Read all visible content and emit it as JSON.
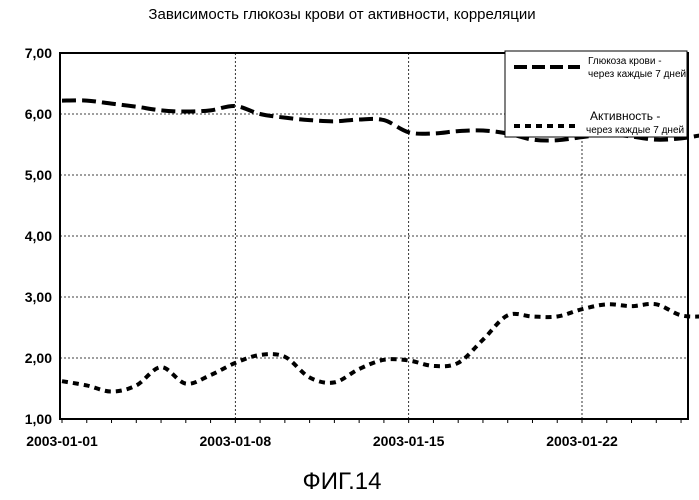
{
  "chart_data": {
    "type": "line",
    "title": "Зависимость глюкозы крови от активности, корреляции",
    "caption": "ФИГ.14",
    "xlabel": "",
    "ylabel": "",
    "ylim": [
      1.0,
      7.0
    ],
    "y_ticks": [
      "7,00",
      "6,00",
      "5,00",
      "4,00",
      "3,00",
      "2,00",
      "1,00"
    ],
    "x_ticks": [
      "2003-01-01",
      "2003-01-08",
      "2003-01-15",
      "2003-01-22"
    ],
    "x_range": [
      "2003-01-01",
      "2003-01-28"
    ],
    "grid": true,
    "legend_position": "top-right",
    "series": [
      {
        "name_line1": "Глюкоза крови -",
        "name_line2": "через каждые  7 дней",
        "style": "long-dash",
        "color": "#000000",
        "points": [
          [
            "2003-01-01",
            6.22
          ],
          [
            "2003-01-02",
            6.22
          ],
          [
            "2003-01-03",
            6.17
          ],
          [
            "2003-01-04",
            6.12
          ],
          [
            "2003-01-05",
            6.06
          ],
          [
            "2003-01-06",
            6.04
          ],
          [
            "2003-01-07",
            6.06
          ],
          [
            "2003-01-08",
            6.13
          ],
          [
            "2003-01-09",
            6.0
          ],
          [
            "2003-01-10",
            5.94
          ],
          [
            "2003-01-11",
            5.9
          ],
          [
            "2003-01-12",
            5.88
          ],
          [
            "2003-01-13",
            5.91
          ],
          [
            "2003-01-14",
            5.9
          ],
          [
            "2003-01-15",
            5.7
          ],
          [
            "2003-01-16",
            5.68
          ],
          [
            "2003-01-17",
            5.72
          ],
          [
            "2003-01-18",
            5.73
          ],
          [
            "2003-01-19",
            5.68
          ],
          [
            "2003-01-20",
            5.58
          ],
          [
            "2003-01-21",
            5.57
          ],
          [
            "2003-01-22",
            5.62
          ],
          [
            "2003-01-23",
            5.67
          ],
          [
            "2003-01-24",
            5.63
          ],
          [
            "2003-01-25",
            5.58
          ],
          [
            "2003-01-26",
            5.6
          ],
          [
            "2003-01-27",
            5.66
          ],
          [
            "2003-01-28",
            5.68
          ]
        ]
      },
      {
        "name_line1": "Активность -",
        "name_line2": "через каждые  7 дней",
        "style": "short-dash",
        "color": "#000000",
        "points": [
          [
            "2003-01-01",
            1.62
          ],
          [
            "2003-01-02",
            1.55
          ],
          [
            "2003-01-03",
            1.45
          ],
          [
            "2003-01-04",
            1.55
          ],
          [
            "2003-01-05",
            1.85
          ],
          [
            "2003-01-06",
            1.58
          ],
          [
            "2003-01-07",
            1.72
          ],
          [
            "2003-01-08",
            1.92
          ],
          [
            "2003-01-09",
            2.05
          ],
          [
            "2003-01-10",
            2.02
          ],
          [
            "2003-01-11",
            1.68
          ],
          [
            "2003-01-12",
            1.6
          ],
          [
            "2003-01-13",
            1.82
          ],
          [
            "2003-01-14",
            1.97
          ],
          [
            "2003-01-15",
            1.96
          ],
          [
            "2003-01-16",
            1.87
          ],
          [
            "2003-01-17",
            1.92
          ],
          [
            "2003-01-18",
            2.3
          ],
          [
            "2003-01-19",
            2.7
          ],
          [
            "2003-01-20",
            2.68
          ],
          [
            "2003-01-21",
            2.68
          ],
          [
            "2003-01-22",
            2.8
          ],
          [
            "2003-01-23",
            2.88
          ],
          [
            "2003-01-24",
            2.85
          ],
          [
            "2003-01-25",
            2.88
          ],
          [
            "2003-01-26",
            2.7
          ],
          [
            "2003-01-27",
            2.68
          ],
          [
            "2003-01-28",
            2.68
          ]
        ]
      }
    ]
  }
}
